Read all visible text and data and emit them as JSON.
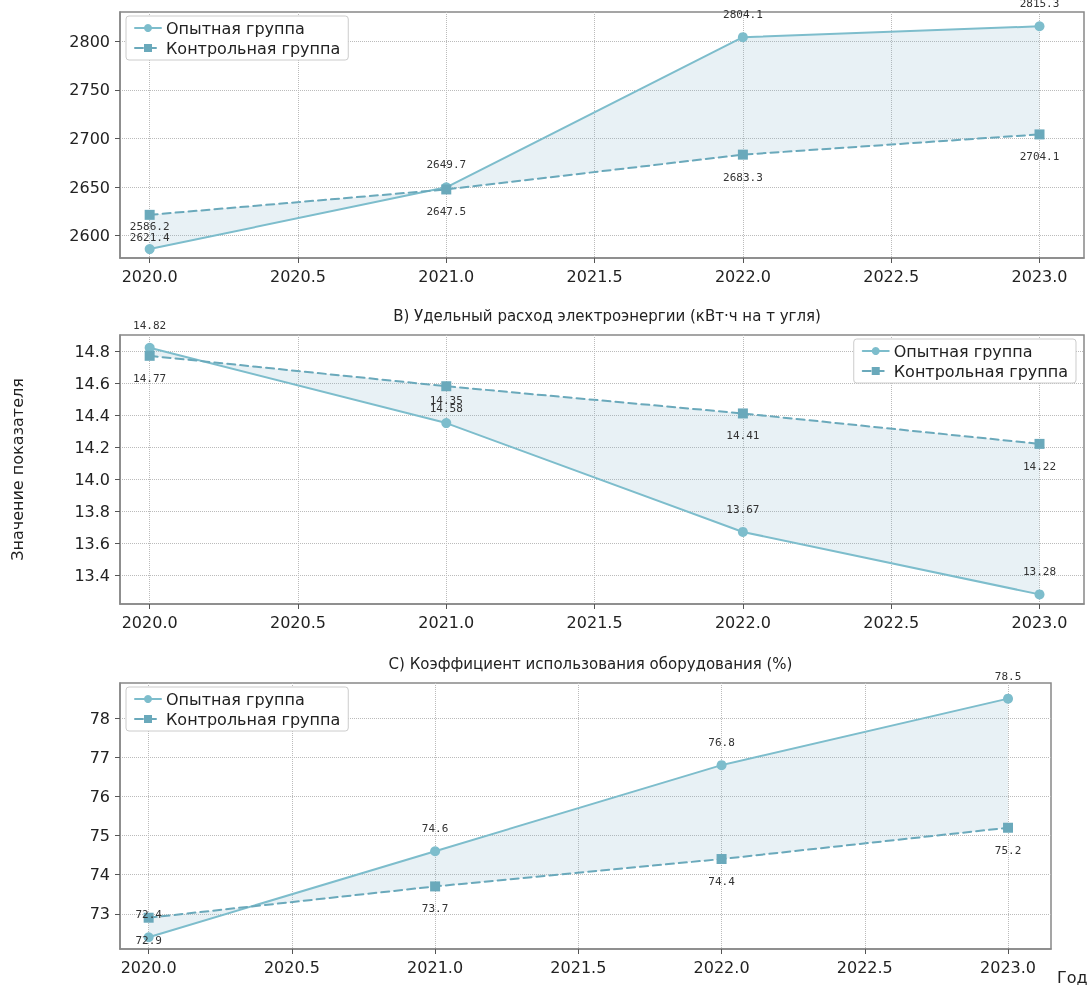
{
  "chart_data": [
    {
      "type": "line",
      "x": [
        2020,
        2021,
        2022,
        2023
      ],
      "series": [
        {
          "name": "Опытная группа",
          "color": "#7dbdcc",
          "marker": "circle",
          "line_style": "solid",
          "values": [
            2586.2,
            2649.7,
            2804.1,
            2815.3
          ]
        },
        {
          "name": "Контрольная группа",
          "color": "#6aa9bb",
          "marker": "square",
          "line_style": "dashed",
          "values": [
            2621.4,
            2647.5,
            2683.3,
            2704.1
          ]
        }
      ],
      "xlim": [
        2019.9,
        2023.15
      ],
      "xticks": [
        {
          "value": 2020,
          "label": "2020.0"
        },
        {
          "value": 2020.5,
          "label": "2020.5"
        },
        {
          "value": 2021,
          "label": "2021.0"
        },
        {
          "value": 2021.5,
          "label": "2021.5"
        },
        {
          "value": 2022,
          "label": "2022.0"
        },
        {
          "value": 2022.5,
          "label": "2022.5"
        },
        {
          "value": 2023,
          "label": "2023.0"
        }
      ],
      "ylim": [
        2577,
        2830
      ],
      "yticks": [
        2600,
        2650,
        2700,
        2750,
        2800
      ],
      "grid": true,
      "legend": "top left",
      "data_labels": true
    },
    {
      "type": "line",
      "title": "B) Удельный расход электроэнергии (кВт·ч на т угля)",
      "ylabel": "Значение показателя",
      "x": [
        2020,
        2021,
        2022,
        2023
      ],
      "series": [
        {
          "name": "Опытная группа",
          "color": "#7dbdcc",
          "marker": "circle",
          "line_style": "solid",
          "values": [
            14.82,
            14.35,
            13.67,
            13.28
          ]
        },
        {
          "name": "Контрольная группа",
          "color": "#6aa9bb",
          "marker": "square",
          "line_style": "dashed",
          "values": [
            14.77,
            14.58,
            14.41,
            14.22
          ]
        }
      ],
      "xlim": [
        2019.9,
        2023.15
      ],
      "xticks": [
        {
          "value": 2020,
          "label": "2020.0"
        },
        {
          "value": 2020.5,
          "label": "2020.5"
        },
        {
          "value": 2021,
          "label": "2021.0"
        },
        {
          "value": 2021.5,
          "label": "2021.5"
        },
        {
          "value": 2022,
          "label": "2022.0"
        },
        {
          "value": 2022.5,
          "label": "2022.5"
        },
        {
          "value": 2023,
          "label": "2023.0"
        }
      ],
      "ylim": [
        13.22,
        14.9
      ],
      "yticks": [
        13.4,
        13.6,
        13.8,
        {
          "value": 14,
          "label": "14.0"
        },
        14.2,
        14.4,
        14.6,
        14.8
      ],
      "grid": true,
      "legend": "top right",
      "data_labels": true
    },
    {
      "type": "line",
      "title": "C) Коэффициент использования оборудования (%)",
      "xlabel": "Год",
      "x": [
        2020,
        2021,
        2022,
        2023
      ],
      "series": [
        {
          "name": "Опытная группа",
          "color": "#7dbdcc",
          "marker": "circle",
          "line_style": "solid",
          "values": [
            72.4,
            74.6,
            76.8,
            78.5
          ]
        },
        {
          "name": "Контрольная группа",
          "color": "#6aa9bb",
          "marker": "square",
          "line_style": "dashed",
          "values": [
            72.9,
            73.7,
            74.4,
            75.2
          ]
        }
      ],
      "xlim": [
        2019.9,
        2023.15
      ],
      "xticks": [
        {
          "value": 2020,
          "label": "2020.0"
        },
        {
          "value": 2020.5,
          "label": "2020.5"
        },
        {
          "value": 2021,
          "label": "2021.0"
        },
        {
          "value": 2021.5,
          "label": "2021.5"
        },
        {
          "value": 2022,
          "label": "2022.0"
        },
        {
          "value": 2022.5,
          "label": "2022.5"
        },
        {
          "value": 2023,
          "label": "2023.0"
        }
      ],
      "ylim": [
        72.1,
        78.9
      ],
      "yticks": [
        73,
        74,
        75,
        76,
        77,
        78
      ],
      "grid": true,
      "legend": "top left",
      "data_labels": true
    }
  ]
}
